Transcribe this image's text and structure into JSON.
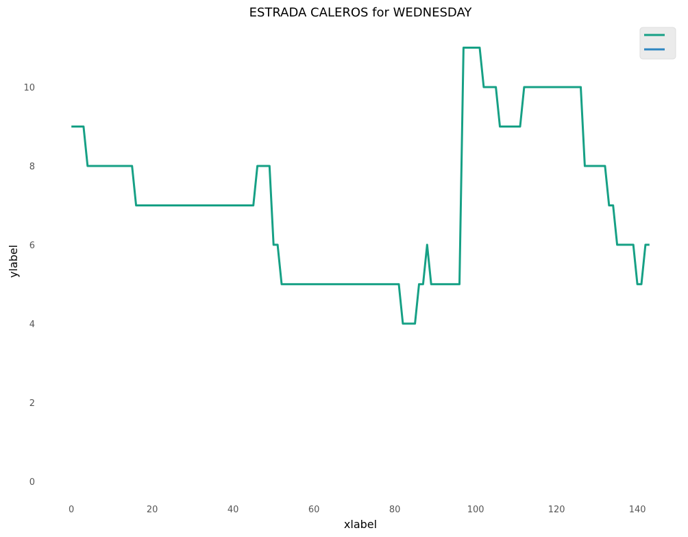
{
  "chart_data": {
    "type": "line",
    "title": "ESTRADA CALEROS for WEDNESDAY",
    "xlabel": "xlabel",
    "ylabel": "ylabel",
    "xlim": [
      -8,
      151
    ],
    "ylim": [
      -0.75,
      11.6
    ],
    "xticks": [
      0,
      20,
      40,
      60,
      80,
      100,
      120,
      140
    ],
    "yticks": [
      0,
      2,
      4,
      6,
      8,
      10
    ],
    "grid": false,
    "legend_position": "top-right",
    "series": [
      {
        "color": "#16a085",
        "x": [
          0,
          3,
          4,
          15,
          16,
          45,
          46,
          49,
          50,
          51,
          52,
          81,
          82,
          85,
          86,
          87,
          88,
          89,
          96,
          97,
          101,
          102,
          105,
          106,
          111,
          112,
          126,
          127,
          132,
          133,
          134,
          135,
          139,
          140,
          141,
          142,
          143
        ],
        "y": [
          9,
          9,
          8,
          8,
          7,
          7,
          8,
          8,
          6,
          6,
          5,
          5,
          4,
          4,
          5,
          5,
          6,
          5,
          5,
          11,
          11,
          10,
          10,
          9,
          9,
          10,
          10,
          8,
          8,
          7,
          7,
          6,
          6,
          5,
          5,
          6,
          6
        ]
      },
      {
        "color": "#2e86c1",
        "x": [],
        "y": []
      }
    ]
  }
}
